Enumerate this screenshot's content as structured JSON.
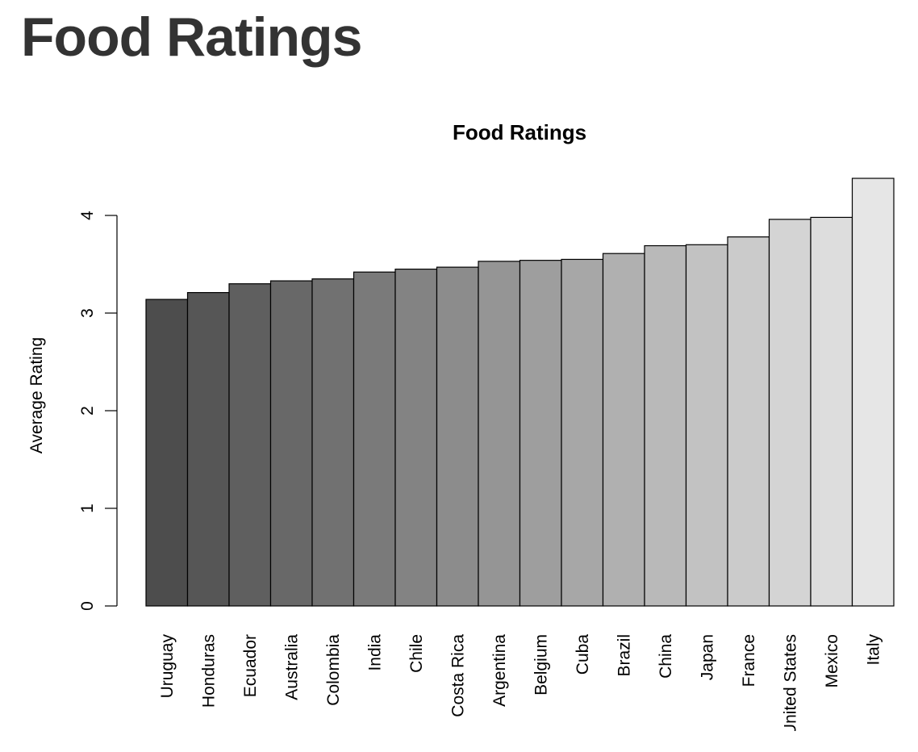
{
  "page": {
    "heading": "Food Ratings"
  },
  "chart_data": {
    "type": "bar",
    "title": "Food Ratings",
    "xlabel": "",
    "ylabel": "Average Rating",
    "categories": [
      "Uruguay",
      "Honduras",
      "Ecuador",
      "Australia",
      "Colombia",
      "India",
      "Chile",
      "Costa Rica",
      "Argentina",
      "Belgium",
      "Cuba",
      "Brazil",
      "China",
      "Japan",
      "France",
      "United States",
      "Mexico",
      "Italy"
    ],
    "values": [
      3.14,
      3.21,
      3.3,
      3.33,
      3.35,
      3.42,
      3.45,
      3.47,
      3.53,
      3.54,
      3.55,
      3.61,
      3.69,
      3.7,
      3.78,
      3.96,
      3.98,
      4.38
    ],
    "yticks": [
      0,
      1,
      2,
      3,
      4
    ],
    "ylim": [
      0,
      4.38
    ],
    "grid": false,
    "legend": "none",
    "bar_color_start": "#4d4d4d",
    "bar_color_end": "#e6e6e6",
    "bar_outline_color": "#000000"
  }
}
